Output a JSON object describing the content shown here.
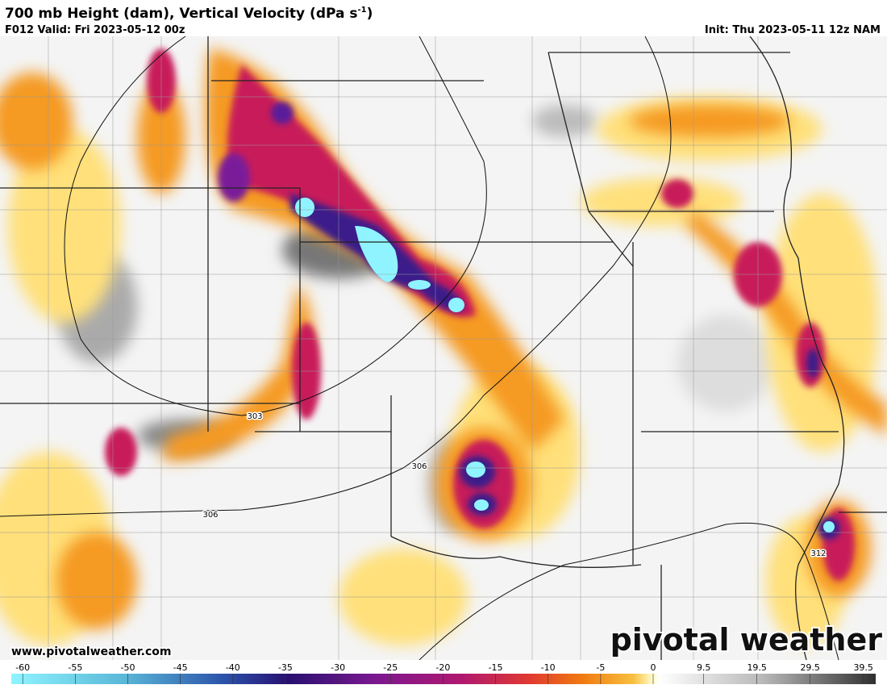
{
  "header": {
    "title": "700 mb Height (dam), Vertical Velocity (dPa s",
    "title_exponent": "-1",
    "title_close": ")",
    "valid": "F012 Valid: Fri 2023-05-12 00z",
    "init": "Init: Thu 2023-05-11 12z NAM"
  },
  "map": {
    "contour_labels": [
      "303",
      "306",
      "306",
      "312"
    ],
    "watermark": "www.pivotalweather.com",
    "logo": "pivotal weather"
  },
  "colorbar": {
    "ticks": [
      -60,
      -55,
      -50,
      -45,
      -40,
      -35,
      -30,
      -25,
      -20,
      -15,
      -10,
      -5,
      0,
      9.5,
      19.5,
      29.5,
      39.5
    ]
  }
}
